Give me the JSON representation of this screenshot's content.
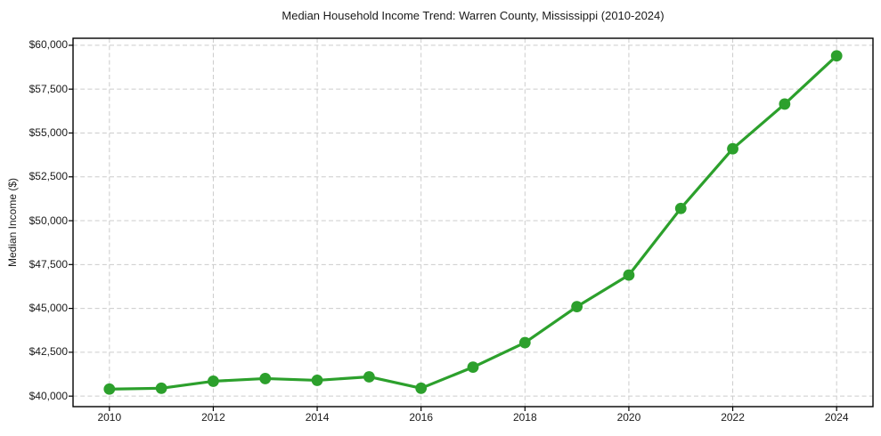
{
  "chart_data": {
    "type": "line",
    "title": "Median Household Income Trend: Warren County, Mississippi (2010-2024)",
    "xlabel": "",
    "ylabel": "Median Income ($)",
    "series_name": "Median household income",
    "x": [
      2010,
      2011,
      2012,
      2013,
      2014,
      2015,
      2016,
      2017,
      2018,
      2019,
      2020,
      2021,
      2022,
      2023,
      2024
    ],
    "values": [
      40400,
      40450,
      40850,
      41000,
      40900,
      41100,
      40450,
      41650,
      43050,
      45100,
      46900,
      50700,
      54100,
      56650,
      59400
    ],
    "xlim": [
      2009.3,
      2024.7
    ],
    "ylim": [
      39400,
      60400
    ],
    "xtick_values": [
      2010,
      2012,
      2014,
      2016,
      2018,
      2020,
      2022,
      2024
    ],
    "xtick_labels": [
      "2010",
      "2012",
      "2014",
      "2016",
      "2018",
      "2020",
      "2022",
      "2024"
    ],
    "ytick_values": [
      40000,
      42500,
      45000,
      47500,
      50000,
      52500,
      55000,
      57500,
      60000
    ],
    "ytick_labels": [
      "$40,000",
      "$42,500",
      "$45,000",
      "$47,500",
      "$50,000",
      "$52,500",
      "$55,000",
      "$57,500",
      "$60,000"
    ],
    "grid": true,
    "legend": false,
    "line_color": "#2ca02c",
    "marker": "circle",
    "marker_color": "#2ca02c"
  },
  "colors": {
    "background": "#ffffff",
    "grid": "#cccccc",
    "spine": "#000000",
    "text": "#1a1a1a"
  }
}
